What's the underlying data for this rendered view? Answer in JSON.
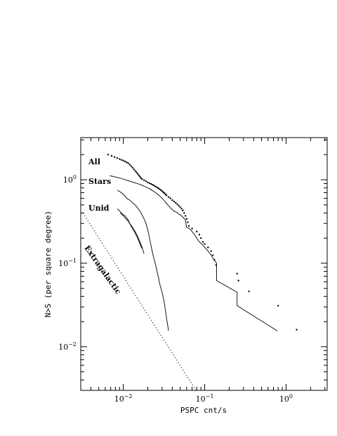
{
  "chart_data": {
    "type": "line",
    "title": "",
    "xlabel": "PSPC cnt/s",
    "ylabel": "N>S (per square degree)",
    "xscale": "log",
    "yscale": "log",
    "xlim": [
      0.003,
      3.2
    ],
    "ylim": [
      0.003,
      3.2
    ],
    "xticks": [
      {
        "value": 0.01,
        "base": "10",
        "exp": "−2"
      },
      {
        "value": 0.1,
        "base": "10",
        "exp": "−1"
      },
      {
        "value": 1,
        "base": "10",
        "exp": "0"
      }
    ],
    "yticks": [
      {
        "value": 0.01,
        "base": "10",
        "exp": "−2"
      },
      {
        "value": 0.1,
        "base": "10",
        "exp": "−1"
      },
      {
        "value": 1,
        "base": "10",
        "exp": "0"
      }
    ],
    "annotations": {
      "all": "All",
      "stars": "Stars",
      "unid": "Unid",
      "extragalactic": "Extragalactic"
    },
    "series": [
      {
        "style": "dots",
        "x": [
          0.0065,
          0.0072,
          0.0078,
          0.0084,
          0.009,
          0.0095,
          0.01,
          0.0105,
          0.011,
          0.0115,
          0.012,
          0.0125,
          0.013,
          0.0135,
          0.014,
          0.0145,
          0.015,
          0.0155,
          0.016,
          0.0165,
          0.017,
          0.018,
          0.019,
          0.02,
          0.021,
          0.022,
          0.023,
          0.024,
          0.025,
          0.026,
          0.027,
          0.028,
          0.029,
          0.03,
          0.031,
          0.032,
          0.033,
          0.034,
          0.036,
          0.038,
          0.04,
          0.042,
          0.044,
          0.046,
          0.048,
          0.05,
          0.052,
          0.054,
          0.056,
          0.058,
          0.06,
          0.062,
          0.064,
          0.07,
          0.08,
          0.086,
          0.09,
          0.095,
          0.1,
          0.11,
          0.12,
          0.126,
          0.132,
          0.138,
          0.25,
          0.26,
          0.35,
          0.8,
          1.35
        ],
        "y": [
          2.0,
          1.93,
          1.87,
          1.82,
          1.77,
          1.73,
          1.7,
          1.66,
          1.62,
          1.58,
          1.52,
          1.46,
          1.4,
          1.34,
          1.28,
          1.23,
          1.18,
          1.13,
          1.09,
          1.05,
          1.02,
          0.99,
          0.96,
          0.93,
          0.91,
          0.89,
          0.87,
          0.85,
          0.83,
          0.81,
          0.79,
          0.77,
          0.75,
          0.73,
          0.71,
          0.69,
          0.67,
          0.65,
          0.62,
          0.6,
          0.57,
          0.55,
          0.53,
          0.51,
          0.49,
          0.47,
          0.45,
          0.43,
          0.4,
          0.37,
          0.34,
          0.31,
          0.28,
          0.26,
          0.24,
          0.22,
          0.2,
          0.18,
          0.17,
          0.155,
          0.14,
          0.125,
          0.11,
          0.095,
          0.075,
          0.062,
          0.046,
          0.031,
          0.016
        ]
      },
      {
        "style": "line",
        "x": [
          0.0068,
          0.008,
          0.009,
          0.01,
          0.011,
          0.012,
          0.013,
          0.014,
          0.015,
          0.016,
          0.017,
          0.018,
          0.02,
          0.022,
          0.024,
          0.026,
          0.028,
          0.03,
          0.032,
          0.034,
          0.036,
          0.038,
          0.04,
          0.042,
          0.045,
          0.048,
          0.052,
          0.055,
          0.058,
          0.06,
          0.065,
          0.07,
          0.075,
          0.08,
          0.086,
          0.092,
          0.1,
          0.11,
          0.12,
          0.13,
          0.14,
          0.14,
          0.25,
          0.25,
          0.78
        ],
        "y": [
          1.12,
          1.08,
          1.05,
          1.02,
          0.99,
          0.96,
          0.94,
          0.92,
          0.9,
          0.88,
          0.86,
          0.84,
          0.8,
          0.76,
          0.72,
          0.68,
          0.64,
          0.6,
          0.56,
          0.52,
          0.49,
          0.46,
          0.44,
          0.42,
          0.41,
          0.39,
          0.37,
          0.35,
          0.33,
          0.27,
          0.26,
          0.24,
          0.22,
          0.2,
          0.18,
          0.17,
          0.155,
          0.14,
          0.125,
          0.11,
          0.1,
          0.062,
          0.045,
          0.031,
          0.0155
        ]
      },
      {
        "style": "line",
        "x": [
          0.0085,
          0.0095,
          0.0105,
          0.011,
          0.012,
          0.013,
          0.014,
          0.015,
          0.016,
          0.017,
          0.018,
          0.019,
          0.02,
          0.021,
          0.022,
          0.023,
          0.024,
          0.025,
          0.026,
          0.027,
          0.028,
          0.03,
          0.032,
          0.034,
          0.036
        ],
        "y": [
          0.75,
          0.7,
          0.64,
          0.6,
          0.57,
          0.53,
          0.5,
          0.46,
          0.42,
          0.38,
          0.34,
          0.3,
          0.25,
          0.2,
          0.16,
          0.13,
          0.11,
          0.095,
          0.08,
          0.068,
          0.057,
          0.045,
          0.033,
          0.022,
          0.0155
        ]
      },
      {
        "style": "line",
        "x": [
          0.0085,
          0.0095,
          0.01,
          0.0105,
          0.011,
          0.0115,
          0.012,
          0.013,
          0.014,
          0.015,
          0.016,
          0.017,
          0.018
        ],
        "y": [
          0.45,
          0.4,
          0.38,
          0.37,
          0.35,
          0.33,
          0.3,
          0.27,
          0.24,
          0.21,
          0.18,
          0.155,
          0.13
        ]
      },
      {
        "style": "line",
        "x": [
          0.0092,
          0.01,
          0.0108,
          0.0115,
          0.0122,
          0.013,
          0.014,
          0.015,
          0.016,
          0.017
        ],
        "y": [
          0.4,
          0.37,
          0.34,
          0.32,
          0.29,
          0.26,
          0.23,
          0.2,
          0.17,
          0.15
        ]
      },
      {
        "style": "dotted",
        "x": [
          0.0032,
          0.08
        ],
        "y": [
          0.4,
          0.0029
        ]
      }
    ]
  }
}
